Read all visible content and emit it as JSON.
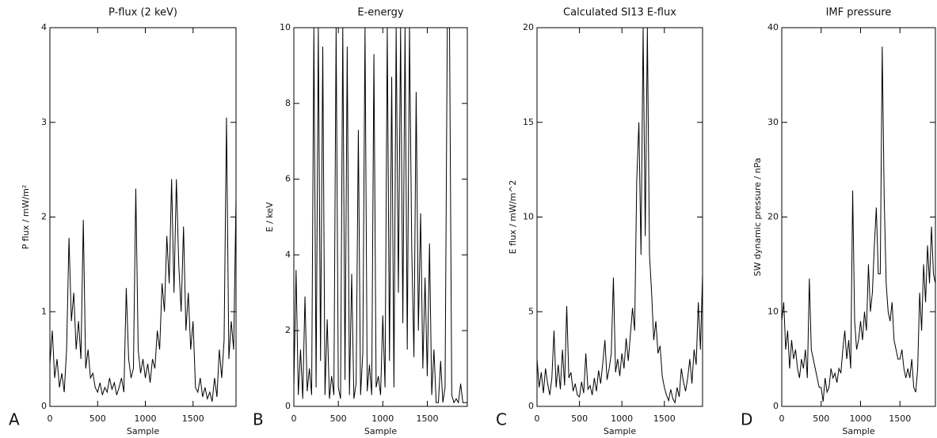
{
  "chart_data": [
    {
      "type": "line",
      "panel_label": "A",
      "title": "P-flux (2 keV)",
      "y_label": "P flux / mW/m²",
      "x_label": "Sample",
      "color": "#000000",
      "xlim": [
        0,
        1950
      ],
      "xticks": [
        0,
        500,
        1000,
        1500
      ],
      "ylim": [
        0,
        4
      ],
      "yticks": [
        0,
        1,
        2,
        3,
        4
      ],
      "x": [
        0,
        25,
        50,
        75,
        100,
        125,
        150,
        175,
        200,
        225,
        250,
        275,
        300,
        325,
        350,
        375,
        400,
        425,
        450,
        475,
        500,
        525,
        550,
        575,
        600,
        625,
        650,
        675,
        700,
        725,
        750,
        775,
        800,
        825,
        850,
        875,
        900,
        925,
        950,
        975,
        1000,
        1025,
        1050,
        1075,
        1100,
        1125,
        1150,
        1175,
        1200,
        1225,
        1250,
        1275,
        1300,
        1325,
        1350,
        1375,
        1400,
        1425,
        1450,
        1475,
        1500,
        1525,
        1550,
        1575,
        1600,
        1625,
        1650,
        1675,
        1700,
        1725,
        1750,
        1775,
        1800,
        1825,
        1850,
        1875,
        1900,
        1925,
        1950
      ],
      "values": [
        0.45,
        0.8,
        0.3,
        0.5,
        0.2,
        0.35,
        0.15,
        0.6,
        1.78,
        0.9,
        1.2,
        0.6,
        0.9,
        0.5,
        1.97,
        0.4,
        0.6,
        0.3,
        0.35,
        0.2,
        0.15,
        0.25,
        0.12,
        0.2,
        0.15,
        0.3,
        0.18,
        0.25,
        0.12,
        0.2,
        0.3,
        0.15,
        1.25,
        0.5,
        0.3,
        0.4,
        2.3,
        0.6,
        0.35,
        0.5,
        0.3,
        0.45,
        0.25,
        0.5,
        0.4,
        0.8,
        0.6,
        1.3,
        1.0,
        1.8,
        1.3,
        2.4,
        1.2,
        2.4,
        1.5,
        1.0,
        1.9,
        0.8,
        1.2,
        0.6,
        0.9,
        0.2,
        0.15,
        0.3,
        0.1,
        0.2,
        0.08,
        0.15,
        0.05,
        0.3,
        0.1,
        0.6,
        0.3,
        0.7,
        3.05,
        0.5,
        0.9,
        0.6,
        2.2
      ]
    },
    {
      "type": "line",
      "panel_label": "B",
      "title": "E-energy",
      "y_label": "E / keV",
      "x_label": "Sample",
      "color": "#000000",
      "xlim": [
        0,
        1950
      ],
      "xticks": [
        0,
        500,
        1000,
        1500
      ],
      "ylim": [
        0,
        10
      ],
      "yticks": [
        0,
        2,
        4,
        6,
        8,
        10
      ],
      "x": [
        0,
        25,
        50,
        75,
        100,
        125,
        150,
        175,
        200,
        225,
        250,
        275,
        300,
        325,
        350,
        375,
        400,
        425,
        450,
        475,
        500,
        525,
        550,
        575,
        600,
        625,
        650,
        675,
        700,
        725,
        750,
        775,
        800,
        825,
        850,
        875,
        900,
        925,
        950,
        975,
        1000,
        1025,
        1050,
        1075,
        1100,
        1125,
        1150,
        1175,
        1200,
        1225,
        1250,
        1275,
        1300,
        1325,
        1350,
        1375,
        1400,
        1425,
        1450,
        1475,
        1500,
        1525,
        1550,
        1575,
        1600,
        1625,
        1650,
        1675,
        1700,
        1725,
        1750,
        1775,
        1800,
        1825,
        1850,
        1875,
        1900,
        1925,
        1950
      ],
      "values": [
        0.5,
        3.6,
        0.3,
        1.5,
        0.2,
        2.9,
        0.4,
        1.0,
        0.3,
        10,
        0.5,
        10,
        1.2,
        9.5,
        0.3,
        2.3,
        0.2,
        0.8,
        0.3,
        10,
        0.5,
        0.2,
        10,
        0.7,
        9.5,
        0.3,
        3.5,
        0.2,
        0.6,
        7.3,
        0.3,
        1.4,
        10,
        0.4,
        1.1,
        0.3,
        9.3,
        0.5,
        0.8,
        0.3,
        2.4,
        0.5,
        10,
        1.2,
        8.7,
        0.5,
        10,
        3.0,
        10,
        2.2,
        10,
        1.5,
        10,
        4.2,
        1.3,
        8.3,
        2.0,
        5.1,
        1.0,
        3.4,
        0.8,
        4.3,
        0.3,
        1.5,
        0.1,
        0.1,
        1.2,
        0.1,
        0.5,
        10,
        10,
        0.3,
        0.1,
        0.2,
        0.1,
        0.6,
        0.1,
        0.1,
        0.1
      ]
    },
    {
      "type": "line",
      "panel_label": "C",
      "title": "Calculated SI13 E-flux",
      "y_label": "E flux / mW/m^2",
      "x_label": "Sample",
      "color": "#000000",
      "xlim": [
        0,
        1950
      ],
      "xticks": [
        0,
        500,
        1000,
        1500
      ],
      "ylim": [
        0,
        20
      ],
      "yticks": [
        0,
        5,
        10,
        15,
        20
      ],
      "x": [
        0,
        25,
        50,
        75,
        100,
        125,
        150,
        175,
        200,
        225,
        250,
        275,
        300,
        325,
        350,
        375,
        400,
        425,
        450,
        475,
        500,
        525,
        550,
        575,
        600,
        625,
        650,
        675,
        700,
        725,
        750,
        775,
        800,
        825,
        850,
        875,
        900,
        925,
        950,
        975,
        1000,
        1025,
        1050,
        1075,
        1100,
        1125,
        1150,
        1175,
        1200,
        1225,
        1250,
        1275,
        1300,
        1325,
        1350,
        1375,
        1400,
        1425,
        1450,
        1475,
        1500,
        1525,
        1550,
        1575,
        1600,
        1625,
        1650,
        1675,
        1700,
        1725,
        1750,
        1775,
        1800,
        1825,
        1850,
        1875,
        1900,
        1925,
        1950
      ],
      "values": [
        2.5,
        1.0,
        1.8,
        0.7,
        2.0,
        1.2,
        0.6,
        1.5,
        4.0,
        1.0,
        2.2,
        0.9,
        3.0,
        1.1,
        5.3,
        1.5,
        1.8,
        0.8,
        1.2,
        0.6,
        0.5,
        1.3,
        0.7,
        2.8,
        0.9,
        1.1,
        0.6,
        1.5,
        0.8,
        1.9,
        1.2,
        2.3,
        3.5,
        1.4,
        2.0,
        2.8,
        6.8,
        1.8,
        2.5,
        1.6,
        2.8,
        2.0,
        3.6,
        2.4,
        3.8,
        5.2,
        4.0,
        12.0,
        15.0,
        8.0,
        20,
        9.0,
        20,
        8.0,
        6.0,
        3.5,
        4.5,
        2.8,
        3.2,
        1.6,
        1.0,
        0.6,
        0.3,
        0.9,
        0.4,
        0.2,
        1.0,
        0.5,
        2.0,
        1.3,
        0.8,
        1.5,
        2.5,
        1.2,
        3.0,
        2.2,
        5.5,
        3.0,
        7.0
      ]
    },
    {
      "type": "line",
      "panel_label": "D",
      "title": "IMF pressure",
      "y_label": "SW dynamic pressure / nPa",
      "x_label": "Sample",
      "color": "#000000",
      "xlim": [
        0,
        1950
      ],
      "xticks": [
        0,
        500,
        1000,
        1500
      ],
      "ylim": [
        0,
        40
      ],
      "yticks": [
        0,
        10,
        20,
        30,
        40
      ],
      "x": [
        0,
        25,
        50,
        75,
        100,
        125,
        150,
        175,
        200,
        225,
        250,
        275,
        300,
        325,
        350,
        375,
        400,
        425,
        450,
        475,
        500,
        525,
        550,
        575,
        600,
        625,
        650,
        675,
        700,
        725,
        750,
        775,
        800,
        825,
        850,
        875,
        900,
        925,
        950,
        975,
        1000,
        1025,
        1050,
        1075,
        1100,
        1125,
        1150,
        1175,
        1200,
        1225,
        1250,
        1275,
        1300,
        1325,
        1350,
        1375,
        1400,
        1425,
        1450,
        1475,
        1500,
        1525,
        1550,
        1575,
        1600,
        1625,
        1650,
        1675,
        1700,
        1725,
        1750,
        1775,
        1800,
        1825,
        1850,
        1875,
        1900,
        1925,
        1950
      ],
      "values": [
        9,
        11,
        6,
        8,
        4,
        7,
        5,
        6,
        4,
        3,
        5,
        4,
        6,
        3,
        13.5,
        6,
        5,
        4,
        3,
        2,
        2,
        0.5,
        3,
        1.5,
        2,
        4,
        3,
        3.5,
        2.5,
        4,
        3.5,
        6,
        8,
        5,
        7,
        4,
        22.8,
        9,
        6,
        7,
        9,
        7,
        10,
        8,
        15,
        10,
        12,
        17,
        21,
        14,
        14,
        38,
        22,
        13,
        10,
        9,
        11,
        7,
        6,
        5,
        5,
        6,
        4,
        3,
        4,
        3,
        5,
        2,
        1.5,
        4,
        12,
        8,
        15,
        11,
        17,
        13,
        19,
        14,
        13
      ]
    }
  ]
}
